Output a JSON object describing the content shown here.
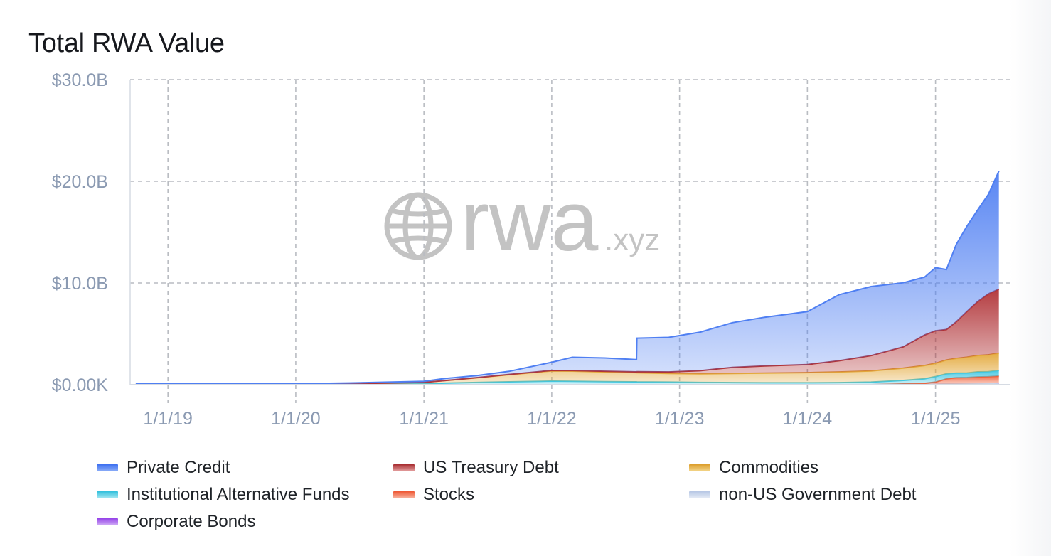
{
  "title": "Total RWA Value",
  "watermark": {
    "main": "rwa",
    "suffix": ".xyz",
    "icon": "globe-icon"
  },
  "chart_data": {
    "type": "area",
    "stacked": true,
    "title": "Total RWA Value",
    "xlabel": "",
    "ylabel": "",
    "x_ticks": [
      "1/1/19",
      "1/1/20",
      "1/1/21",
      "1/1/22",
      "1/1/23",
      "1/1/24",
      "1/1/25"
    ],
    "y_ticks": [
      "$0.00K",
      "$10.0B",
      "$20.0B",
      "$30.0B"
    ],
    "y_tick_values": [
      0,
      10,
      20,
      30
    ],
    "y_unit": "billion USD",
    "ylim": [
      0,
      30
    ],
    "xlim": [
      "2018-09-15",
      "2025-08-01"
    ],
    "grid": true,
    "legend_position": "bottom",
    "x": [
      "2018-10-01",
      "2019-06-01",
      "2020-01-01",
      "2020-06-01",
      "2021-01-01",
      "2021-03-01",
      "2021-06-01",
      "2021-09-01",
      "2022-01-01",
      "2022-03-01",
      "2022-06-01",
      "2022-08-31",
      "2022-09-01",
      "2022-12-01",
      "2023-03-01",
      "2023-06-01",
      "2023-09-01",
      "2024-01-01",
      "2024-04-01",
      "2024-07-01",
      "2024-10-01",
      "2024-12-01",
      "2025-01-01",
      "2025-02-01",
      "2025-03-01",
      "2025-04-01",
      "2025-05-01",
      "2025-06-01",
      "2025-07-01"
    ],
    "series": [
      {
        "name": "Corporate Bonds",
        "color": "#9b4dea",
        "values": [
          0,
          0,
          0,
          0,
          0,
          0,
          0,
          0,
          0,
          0,
          0,
          0,
          0,
          0,
          0,
          0,
          0,
          0,
          0,
          0,
          0.02,
          0.03,
          0.04,
          0.05,
          0.06,
          0.07,
          0.08,
          0.09,
          0.1
        ]
      },
      {
        "name": "non-US Government Debt",
        "color": "#c9d6ea",
        "values": [
          0,
          0,
          0,
          0,
          0,
          0,
          0,
          0,
          0,
          0,
          0,
          0,
          0,
          0,
          0,
          0,
          0,
          0,
          0,
          0,
          0,
          0,
          0.01,
          0.02,
          0.02,
          0.03,
          0.03,
          0.04,
          0.05
        ]
      },
      {
        "name": "Stocks",
        "color": "#f0613a",
        "values": [
          0,
          0,
          0,
          0,
          0,
          0,
          0,
          0,
          0,
          0,
          0,
          0,
          0,
          0,
          0,
          0,
          0,
          0,
          0,
          0,
          0.05,
          0.1,
          0.2,
          0.5,
          0.6,
          0.6,
          0.65,
          0.65,
          0.7
        ]
      },
      {
        "name": "Institutional Alternative Funds",
        "color": "#3fc6e0",
        "values": [
          0.02,
          0.03,
          0.03,
          0.04,
          0.08,
          0.15,
          0.22,
          0.28,
          0.35,
          0.33,
          0.3,
          0.28,
          0.27,
          0.25,
          0.22,
          0.2,
          0.18,
          0.18,
          0.2,
          0.25,
          0.35,
          0.45,
          0.55,
          0.5,
          0.45,
          0.45,
          0.5,
          0.5,
          0.55
        ]
      },
      {
        "name": "Commodities",
        "color": "#e3a83a",
        "values": [
          0,
          0,
          0.02,
          0.05,
          0.15,
          0.25,
          0.45,
          0.7,
          1.0,
          1.0,
          0.95,
          0.9,
          0.9,
          0.85,
          0.85,
          0.9,
          0.95,
          1.0,
          1.05,
          1.1,
          1.2,
          1.3,
          1.3,
          1.35,
          1.45,
          1.55,
          1.6,
          1.65,
          1.7
        ]
      },
      {
        "name": "US Treasury Debt",
        "color": "#b03236",
        "values": [
          0,
          0,
          0,
          0,
          0,
          0,
          0.02,
          0.03,
          0.05,
          0.06,
          0.07,
          0.08,
          0.1,
          0.15,
          0.3,
          0.6,
          0.7,
          0.8,
          1.1,
          1.5,
          2.1,
          3.0,
          3.2,
          3.0,
          3.6,
          4.5,
          5.3,
          6.0,
          6.3
        ]
      },
      {
        "name": "Private Credit",
        "color": "#4f7ff2",
        "values": [
          0.05,
          0.05,
          0.05,
          0.08,
          0.1,
          0.2,
          0.2,
          0.3,
          0.8,
          1.3,
          1.3,
          1.2,
          3.3,
          3.4,
          3.8,
          4.4,
          4.8,
          5.2,
          6.5,
          6.8,
          6.3,
          5.7,
          6.2,
          5.9,
          7.6,
          8.4,
          9.0,
          9.8,
          11.6
        ]
      }
    ]
  }
}
